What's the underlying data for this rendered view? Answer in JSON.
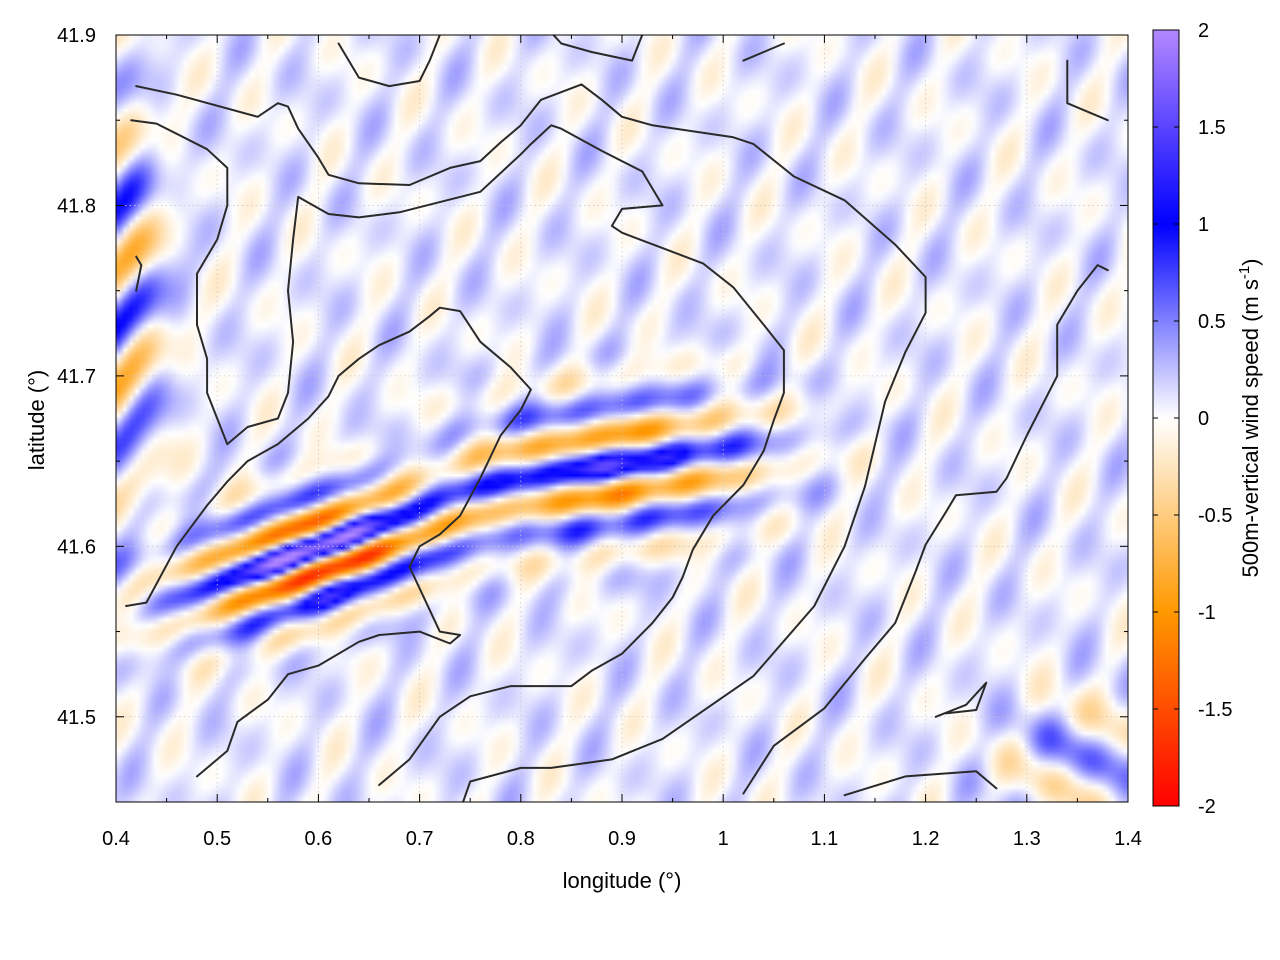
{
  "chart_data": {
    "type": "heatmap",
    "title": "",
    "xlabel": "longitude (°)",
    "ylabel": "latitude (°)",
    "xlim": [
      0.4,
      1.4
    ],
    "ylim": [
      41.45,
      41.9
    ],
    "x_ticks": [
      "0.4",
      "0.5",
      "0.6",
      "0.7",
      "0.8",
      "0.9",
      "1",
      "1.1",
      "1.2",
      "1.3",
      "1.4"
    ],
    "y_ticks": [
      "41.5",
      "41.6",
      "41.7",
      "41.8",
      "41.9"
    ],
    "grid": true,
    "colorbar": {
      "label": "500m-vertical wind speed (m s-1)",
      "label_main": "500m-vertical wind speed (m s",
      "label_exp": "-1",
      "label_close": ")",
      "range": [
        -2,
        2
      ],
      "ticks": [
        "2",
        "1.5",
        "1",
        "0.5",
        "0",
        "-0.5",
        "-1",
        "-1.5",
        "-2"
      ],
      "colors": [
        "#ff0000",
        "#ff9900",
        "#ffffff",
        "#0000ff",
        "#b388ff"
      ]
    },
    "features": [
      {
        "name": "wave-band-west",
        "center": [
          0.6,
          41.595
        ],
        "strength": 2.0,
        "note": "strongest band: up to about -2 (red) and +1.8 (purple)"
      },
      {
        "name": "wave-band-central",
        "center": [
          0.89,
          41.645
        ],
        "strength": 1.3
      },
      {
        "name": "wave-band-northwest-edge",
        "center": [
          0.41,
          41.74
        ],
        "strength": 1.0
      }
    ],
    "contours": [
      [
        [
          0.42,
          41.87
        ],
        [
          0.46,
          41.865
        ],
        [
          0.54,
          41.852
        ],
        [
          0.56,
          41.86
        ],
        [
          0.57,
          41.858
        ],
        [
          0.58,
          41.845
        ],
        [
          0.6,
          41.828
        ],
        [
          0.61,
          41.818
        ],
        [
          0.64,
          41.813
        ],
        [
          0.69,
          41.812
        ],
        [
          0.73,
          41.822
        ],
        [
          0.76,
          41.826
        ],
        [
          0.78,
          41.837
        ],
        [
          0.8,
          41.847
        ],
        [
          0.82,
          41.862
        ],
        [
          0.86,
          41.871
        ],
        [
          0.88,
          41.862
        ],
        [
          0.9,
          41.852
        ],
        [
          0.93,
          41.847
        ],
        [
          1.01,
          41.84
        ],
        [
          1.03,
          41.836
        ],
        [
          1.07,
          41.817
        ],
        [
          1.12,
          41.803
        ],
        [
          1.17,
          41.777
        ],
        [
          1.2,
          41.758
        ],
        [
          1.2,
          41.737
        ],
        [
          1.18,
          41.714
        ],
        [
          1.16,
          41.685
        ],
        [
          1.14,
          41.635
        ],
        [
          1.12,
          41.6
        ],
        [
          1.09,
          41.565
        ],
        [
          1.03,
          41.524
        ],
        [
          0.94,
          41.487
        ],
        [
          0.89,
          41.475
        ],
        [
          0.83,
          41.47
        ],
        [
          0.8,
          41.47
        ],
        [
          0.75,
          41.462
        ],
        [
          0.74,
          41.445
        ]
      ],
      [
        [
          0.415,
          41.85
        ],
        [
          0.44,
          41.848
        ],
        [
          0.49,
          41.833
        ],
        [
          0.51,
          41.822
        ],
        [
          0.51,
          41.8
        ],
        [
          0.5,
          41.78
        ],
        [
          0.48,
          41.76
        ],
        [
          0.48,
          41.73
        ],
        [
          0.49,
          41.71
        ],
        [
          0.49,
          41.69
        ],
        [
          0.5,
          41.675
        ],
        [
          0.51,
          41.66
        ]
      ],
      [
        [
          0.51,
          41.66
        ],
        [
          0.53,
          41.67
        ],
        [
          0.56,
          41.675
        ],
        [
          0.57,
          41.69
        ],
        [
          0.575,
          41.72
        ],
        [
          0.57,
          41.75
        ],
        [
          0.575,
          41.78
        ],
        [
          0.58,
          41.805
        ],
        [
          0.61,
          41.795
        ],
        [
          0.64,
          41.793
        ],
        [
          0.68,
          41.796
        ],
        [
          0.76,
          41.808
        ],
        [
          0.8,
          41.83
        ],
        [
          0.81,
          41.836
        ],
        [
          0.83,
          41.847
        ],
        [
          0.84,
          41.845
        ],
        [
          0.88,
          41.832
        ],
        [
          0.92,
          41.82
        ],
        [
          0.94,
          41.8
        ],
        [
          0.9,
          41.798
        ],
        [
          0.89,
          41.788
        ],
        [
          0.9,
          41.784
        ],
        [
          0.94,
          41.775
        ],
        [
          0.98,
          41.766
        ],
        [
          1.01,
          41.752
        ],
        [
          1.04,
          41.73
        ],
        [
          1.06,
          41.715
        ],
        [
          1.06,
          41.69
        ],
        [
          1.05,
          41.674
        ],
        [
          1.04,
          41.656
        ],
        [
          1.02,
          41.636
        ],
        [
          0.99,
          41.618
        ],
        [
          0.97,
          41.598
        ],
        [
          0.96,
          41.582
        ],
        [
          0.95,
          41.57
        ],
        [
          0.93,
          41.555
        ],
        [
          0.9,
          41.537
        ],
        [
          0.87,
          41.527
        ],
        [
          0.85,
          41.518
        ],
        [
          0.82,
          41.518
        ],
        [
          0.79,
          41.518
        ],
        [
          0.75,
          41.512
        ],
        [
          0.72,
          41.5
        ],
        [
          0.69,
          41.475
        ],
        [
          0.66,
          41.46
        ]
      ],
      [
        [
          0.41,
          41.565
        ],
        [
          0.43,
          41.567
        ],
        [
          0.46,
          41.6
        ],
        [
          0.49,
          41.624
        ],
        [
          0.51,
          41.638
        ],
        [
          0.53,
          41.65
        ],
        [
          0.56,
          41.66
        ],
        [
          0.59,
          41.675
        ],
        [
          0.61,
          41.688
        ],
        [
          0.62,
          41.7
        ],
        [
          0.64,
          41.71
        ],
        [
          0.66,
          41.718
        ],
        [
          0.69,
          41.726
        ],
        [
          0.71,
          41.735
        ],
        [
          0.72,
          41.74
        ],
        [
          0.74,
          41.738
        ],
        [
          0.76,
          41.72
        ],
        [
          0.79,
          41.705
        ],
        [
          0.81,
          41.692
        ],
        [
          0.8,
          41.68
        ],
        [
          0.78,
          41.665
        ],
        [
          0.76,
          41.64
        ],
        [
          0.74,
          41.618
        ],
        [
          0.72,
          41.607
        ],
        [
          0.7,
          41.6
        ],
        [
          0.69,
          41.588
        ],
        [
          0.72,
          41.55
        ],
        [
          0.74,
          41.548
        ],
        [
          0.73,
          41.543
        ],
        [
          0.7,
          41.55
        ],
        [
          0.66,
          41.548
        ],
        [
          0.64,
          41.544
        ],
        [
          0.6,
          41.53
        ],
        [
          0.57,
          41.525
        ],
        [
          0.55,
          41.51
        ],
        [
          0.52,
          41.497
        ],
        [
          0.51,
          41.48
        ],
        [
          0.48,
          41.465
        ]
      ],
      [
        [
          1.02,
          41.455
        ],
        [
          1.05,
          41.483
        ],
        [
          1.1,
          41.505
        ],
        [
          1.14,
          41.534
        ],
        [
          1.17,
          41.555
        ],
        [
          1.19,
          41.585
        ],
        [
          1.2,
          41.601
        ],
        [
          1.22,
          41.62
        ],
        [
          1.23,
          41.63
        ],
        [
          1.27,
          41.632
        ],
        [
          1.28,
          41.64
        ],
        [
          1.3,
          41.665
        ],
        [
          1.33,
          41.7
        ],
        [
          1.33,
          41.73
        ],
        [
          1.35,
          41.75
        ],
        [
          1.37,
          41.765
        ],
        [
          1.38,
          41.762
        ]
      ],
      [
        [
          1.12,
          41.454
        ],
        [
          1.18,
          41.465
        ],
        [
          1.25,
          41.468
        ],
        [
          1.27,
          41.458
        ]
      ],
      [
        [
          0.82,
          41.908
        ],
        [
          0.84,
          41.895
        ],
        [
          0.87,
          41.89
        ],
        [
          0.91,
          41.885
        ],
        [
          0.92,
          41.9
        ]
      ],
      [
        [
          0.62,
          41.895
        ],
        [
          0.64,
          41.875
        ],
        [
          0.67,
          41.87
        ],
        [
          0.7,
          41.873
        ],
        [
          0.71,
          41.885
        ],
        [
          0.72,
          41.9
        ]
      ],
      [
        [
          1.34,
          41.885
        ],
        [
          1.34,
          41.86
        ],
        [
          1.36,
          41.855
        ],
        [
          1.38,
          41.85
        ]
      ],
      [
        [
          1.02,
          41.885
        ],
        [
          1.04,
          41.89
        ],
        [
          1.06,
          41.895
        ]
      ],
      [
        [
          0.42,
          41.77
        ],
        [
          0.425,
          41.765
        ],
        [
          0.42,
          41.75
        ]
      ],
      [
        [
          1.21,
          41.5
        ],
        [
          1.24,
          41.507
        ],
        [
          1.26,
          41.52
        ],
        [
          1.25,
          41.504
        ],
        [
          1.22,
          41.502
        ]
      ]
    ]
  }
}
